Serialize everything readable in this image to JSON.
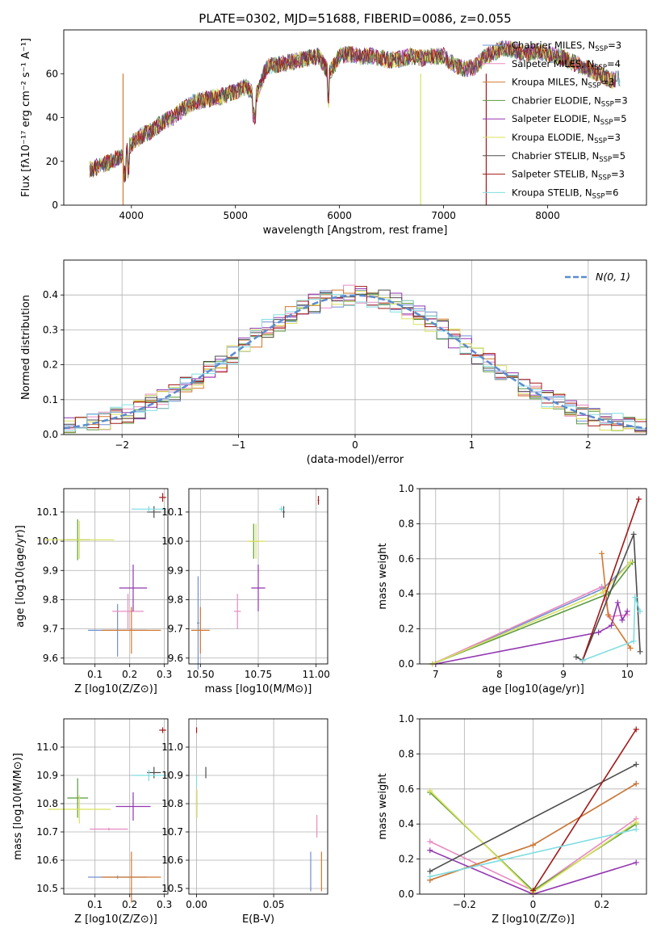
{
  "colors": {
    "Chabrier MILES": "#6f8fd1",
    "Salpeter MILES": "#e88bc0",
    "Kroupa MILES": "#d2782f",
    "Chabrier ELODIE": "#5b9a3e",
    "Salpeter ELODIE": "#9236b0",
    "Kroupa ELODIE": "#d9e25a",
    "Chabrier STELIB": "#4d4d4d",
    "Salpeter STELIB": "#a31818",
    "Kroupa STELIB": "#7fdde0"
  },
  "chart_data": [
    {
      "id": "spectrum",
      "type": "line",
      "title": "PLATE=0302, MJD=51688, FIBERID=0086, z=0.055",
      "xlabel": "wavelength [Angstrom, rest frame]",
      "ylabel": "Flux [fλ10⁻¹⁷ erg cm⁻² s⁻¹ A⁻¹]",
      "xlim": [
        3350,
        8950
      ],
      "ylim": [
        0,
        80
      ],
      "xticks": [
        4000,
        5000,
        6000,
        7000,
        8000
      ],
      "yticks": [
        0,
        20,
        40,
        60
      ],
      "grid": false,
      "legend": [
        "Chabrier MILES, N_SSP=3",
        "Salpeter MILES, N_SSP=4",
        "Kroupa MILES, N_SSP=3",
        "Chabrier ELODIE, N_SSP=3",
        "Salpeter ELODIE, N_SSP=5",
        "Kroupa ELODIE, N_SSP=3",
        "Chabrier STELIB, N_SSP=5",
        "Salpeter STELIB, N_SSP=3",
        "Kroupa STELIB, N_SSP=6"
      ],
      "legend_placement": "right",
      "series_shape": [
        [
          3600,
          16
        ],
        [
          3700,
          18
        ],
        [
          3800,
          20
        ],
        [
          3900,
          22
        ],
        [
          4000,
          28
        ],
        [
          4100,
          32
        ],
        [
          4200,
          34
        ],
        [
          4300,
          38
        ],
        [
          4400,
          40
        ],
        [
          4500,
          44
        ],
        [
          4600,
          47
        ],
        [
          4700,
          48
        ],
        [
          4800,
          49
        ],
        [
          4900,
          50
        ],
        [
          5000,
          52
        ],
        [
          5100,
          54
        ],
        [
          5200,
          50
        ],
        [
          5300,
          63
        ],
        [
          5400,
          64
        ],
        [
          5500,
          65
        ],
        [
          5600,
          66
        ],
        [
          5700,
          67
        ],
        [
          5800,
          68
        ],
        [
          5900,
          60
        ],
        [
          6000,
          68
        ],
        [
          6100,
          69
        ],
        [
          6200,
          68
        ],
        [
          6300,
          68
        ],
        [
          6400,
          67
        ],
        [
          6500,
          66
        ],
        [
          6600,
          67
        ],
        [
          6700,
          68
        ],
        [
          6800,
          67
        ],
        [
          6900,
          68
        ],
        [
          7000,
          68
        ],
        [
          7100,
          64
        ],
        [
          7200,
          62
        ],
        [
          7300,
          63
        ],
        [
          7400,
          68
        ],
        [
          7500,
          70
        ],
        [
          7600,
          72
        ],
        [
          7700,
          70
        ],
        [
          7800,
          69
        ],
        [
          7900,
          70
        ],
        [
          8000,
          69
        ],
        [
          8100,
          68
        ],
        [
          8200,
          66
        ],
        [
          8300,
          64
        ],
        [
          8400,
          62
        ],
        [
          8500,
          60
        ],
        [
          8600,
          57
        ],
        [
          8700,
          58
        ]
      ],
      "drop_lines": [
        {
          "x": 3920,
          "series": "Kroupa MILES"
        },
        {
          "x": 6780,
          "series": "Kroupa ELODIE"
        },
        {
          "x": 7410,
          "series": "Salpeter STELIB"
        }
      ]
    },
    {
      "id": "residuals",
      "type": "line",
      "xlabel": "(data-model)/error",
      "ylabel": "Normed distribution",
      "xlim": [
        -2.5,
        2.5
      ],
      "ylim": [
        0,
        0.5
      ],
      "xticks": [
        -2,
        -1,
        0,
        1,
        2
      ],
      "yticks": [
        0.0,
        0.1,
        0.2,
        0.3,
        0.4
      ],
      "grid": true,
      "legend": [
        "N(0, 1)"
      ],
      "legend_placement": "top-right"
    },
    {
      "id": "age_vs_Z",
      "type": "scatter",
      "xlabel": "Z [log10(Z/Z⊙)]",
      "ylabel": "age  [log10(age/yr)]",
      "xlim": [
        0.01,
        0.31
      ],
      "ylim": [
        9.58,
        10.18
      ],
      "xticks": [
        0.1,
        0.2,
        0.3
      ],
      "yticks": [
        9.6,
        9.7,
        9.8,
        9.9,
        10.0,
        10.1
      ],
      "grid": true,
      "points": [
        {
          "series": "Chabrier MILES",
          "x": 0.165,
          "y": 9.695,
          "xerr": 0.085,
          "yerr": 0.09
        },
        {
          "series": "Salpeter MILES",
          "x": 0.195,
          "y": 9.76,
          "xerr": 0.045,
          "yerr": 0.06
        },
        {
          "series": "Kroupa MILES",
          "x": 0.205,
          "y": 9.695,
          "xerr": 0.085,
          "yerr": 0.08
        },
        {
          "series": "Chabrier ELODIE",
          "x": 0.05,
          "y": 10.005,
          "xerr": 0.035,
          "yerr": 0.07
        },
        {
          "series": "Salpeter ELODIE",
          "x": 0.21,
          "y": 9.84,
          "xerr": 0.04,
          "yerr": 0.08
        },
        {
          "series": "Kroupa ELODIE",
          "x": 0.055,
          "y": 10.005,
          "xerr": 0.1,
          "yerr": 0.065
        },
        {
          "series": "Chabrier STELIB",
          "x": 0.27,
          "y": 10.1,
          "xerr": 0.02,
          "yerr": 0.02
        },
        {
          "series": "Salpeter STELIB",
          "x": 0.295,
          "y": 10.15,
          "xerr": 0.01,
          "yerr": 0.015
        },
        {
          "series": "Kroupa STELIB",
          "x": 0.255,
          "y": 10.11,
          "xerr": 0.05,
          "yerr": 0.01
        }
      ]
    },
    {
      "id": "age_vs_mass",
      "type": "scatter",
      "xlabel": "mass [log10(M/M⊙)]",
      "ylim": [
        9.58,
        10.18
      ],
      "xlim": [
        10.5,
        11.1
      ],
      "xticks": [
        10.55,
        10.8,
        11.05
      ],
      "xtick_labels": [
        "10.50",
        "10.75",
        "11.00"
      ],
      "yticks": [
        9.6,
        9.7,
        9.8,
        9.9,
        10.0,
        10.1
      ],
      "grid": true,
      "points": [
        {
          "series": "Chabrier MILES",
          "x": 10.54,
          "y": 9.72,
          "xerr": 0.005,
          "yerr": 0.16
        },
        {
          "series": "Salpeter MILES",
          "x": 10.71,
          "y": 9.76,
          "xerr": 0.015,
          "yerr": 0.06
        },
        {
          "series": "Kroupa MILES",
          "x": 10.55,
          "y": 9.695,
          "xerr": 0.04,
          "yerr": 0.08
        },
        {
          "series": "Chabrier ELODIE",
          "x": 10.78,
          "y": 10.0,
          "xerr": 0.02,
          "yerr": 0.06
        },
        {
          "series": "Salpeter ELODIE",
          "x": 10.8,
          "y": 9.84,
          "xerr": 0.03,
          "yerr": 0.08
        },
        {
          "series": "Kroupa ELODIE",
          "x": 10.79,
          "y": 10.0,
          "xerr": 0.04,
          "yerr": 0.06
        },
        {
          "series": "Chabrier STELIB",
          "x": 10.91,
          "y": 10.1,
          "xerr": 0.005,
          "yerr": 0.02
        },
        {
          "series": "Salpeter STELIB",
          "x": 11.06,
          "y": 10.14,
          "xerr": 0.003,
          "yerr": 0.015
        },
        {
          "series": "Kroupa STELIB",
          "x": 10.9,
          "y": 10.11,
          "xerr": 0.01,
          "yerr": 0.01
        }
      ]
    },
    {
      "id": "weight_vs_age",
      "type": "line",
      "xlabel": "age  [log10(age/yr)]",
      "ylabel": "mass weight",
      "xlim": [
        6.75,
        10.3
      ],
      "ylim": [
        0,
        1.0
      ],
      "xticks": [
        7,
        8,
        9,
        10
      ],
      "yticks": [
        0.0,
        0.2,
        0.4,
        0.6,
        0.8,
        1.0
      ],
      "grid": true,
      "series": [
        {
          "name": "Chabrier MILES",
          "points": [
            [
              6.95,
              0.0
            ],
            [
              9.62,
              0.43
            ],
            [
              10.05,
              0.58
            ]
          ]
        },
        {
          "name": "Salpeter MILES",
          "points": [
            [
              6.95,
              0.0
            ],
            [
              9.6,
              0.44
            ],
            [
              9.72,
              0.27
            ],
            [
              10.0,
              0.28
            ]
          ]
        },
        {
          "name": "Kroupa MILES",
          "points": [
            [
              9.6,
              0.63
            ],
            [
              9.7,
              0.28
            ],
            [
              10.05,
              0.09
            ]
          ]
        },
        {
          "name": "Chabrier ELODIE",
          "points": [
            [
              6.95,
              0.0
            ],
            [
              9.7,
              0.4
            ],
            [
              10.08,
              0.58
            ]
          ]
        },
        {
          "name": "Salpeter ELODIE",
          "points": [
            [
              7.0,
              0.0
            ],
            [
              9.55,
              0.18
            ],
            [
              9.75,
              0.22
            ],
            [
              9.85,
              0.35
            ],
            [
              9.92,
              0.25
            ],
            [
              10.0,
              0.3
            ]
          ]
        },
        {
          "name": "Kroupa ELODIE",
          "points": [
            [
              6.95,
              0.0
            ],
            [
              9.62,
              0.41
            ],
            [
              10.05,
              0.58
            ]
          ]
        },
        {
          "name": "Chabrier STELIB",
          "points": [
            [
              9.2,
              0.04
            ],
            [
              9.3,
              0.02
            ],
            [
              10.1,
              0.74
            ],
            [
              10.2,
              0.07
            ]
          ]
        },
        {
          "name": "Salpeter STELIB",
          "points": [
            [
              9.3,
              0.02
            ],
            [
              10.18,
              0.94
            ]
          ]
        },
        {
          "name": "Kroupa STELIB",
          "points": [
            [
              9.3,
              0.02
            ],
            [
              10.1,
              0.13
            ],
            [
              10.12,
              0.38
            ],
            [
              10.2,
              0.3
            ]
          ]
        }
      ]
    },
    {
      "id": "mass_vs_Z",
      "type": "scatter",
      "xlabel": "Z [log10(Z/Z⊙)]",
      "ylabel": "mass [log10(M/M⊙)]",
      "xlim": [
        0.01,
        0.31
      ],
      "ylim": [
        10.48,
        11.1
      ],
      "xticks": [
        0.1,
        0.2,
        0.3
      ],
      "yticks": [
        10.5,
        10.6,
        10.7,
        10.8,
        10.9,
        11.0
      ],
      "grid": true,
      "points": [
        {
          "series": "Chabrier MILES",
          "x": 0.165,
          "y": 10.54,
          "xerr": 0.085,
          "yerr": 0.005
        },
        {
          "series": "Salpeter MILES",
          "x": 0.14,
          "y": 10.71,
          "xerr": 0.055,
          "yerr": 0.005
        },
        {
          "series": "Kroupa MILES",
          "x": 0.205,
          "y": 10.54,
          "xerr": 0.085,
          "yerr": 0.09
        },
        {
          "series": "Chabrier ELODIE",
          "x": 0.05,
          "y": 10.82,
          "xerr": 0.03,
          "yerr": 0.07
        },
        {
          "series": "Salpeter ELODIE",
          "x": 0.21,
          "y": 10.79,
          "xerr": 0.05,
          "yerr": 0.05
        },
        {
          "series": "Kroupa ELODIE",
          "x": 0.055,
          "y": 10.78,
          "xerr": 0.09,
          "yerr": 0.05
        },
        {
          "series": "Chabrier STELIB",
          "x": 0.27,
          "y": 10.91,
          "xerr": 0.02,
          "yerr": 0.02
        },
        {
          "series": "Salpeter STELIB",
          "x": 0.295,
          "y": 11.06,
          "xerr": 0.01,
          "yerr": 0.01
        },
        {
          "series": "Kroupa STELIB",
          "x": 0.255,
          "y": 10.9,
          "xerr": 0.05,
          "yerr": 0.02
        }
      ]
    },
    {
      "id": "mass_vs_ebv",
      "type": "scatter",
      "xlabel": "E(B-V)",
      "xlim": [
        -0.005,
        0.085
      ],
      "ylim": [
        10.48,
        11.1
      ],
      "xticks": [
        0.0,
        0.05
      ],
      "xtick_labels": [
        "0.00",
        "0.05"
      ],
      "yticks": [
        10.5,
        10.6,
        10.7,
        10.8,
        10.9,
        11.0
      ],
      "grid": true,
      "points": [
        {
          "series": "Chabrier MILES",
          "x": 0.074,
          "y": 10.56,
          "xerr": 0,
          "yerr": 0.07
        },
        {
          "series": "Salpeter MILES",
          "x": 0.078,
          "y": 10.72,
          "xerr": 0,
          "yerr": 0.04
        },
        {
          "series": "Kroupa MILES",
          "x": 0.081,
          "y": 10.56,
          "xerr": 0,
          "yerr": 0.07
        },
        {
          "series": "Chabrier ELODIE",
          "x": 0.0,
          "y": 10.8,
          "xerr": 0,
          "yerr": 0.05
        },
        {
          "series": "Salpeter ELODIE",
          "x": 0.0,
          "y": 10.8,
          "xerr": 0,
          "yerr": 0.05
        },
        {
          "series": "Kroupa ELODIE",
          "x": 0.0,
          "y": 10.8,
          "xerr": 0,
          "yerr": 0.05
        },
        {
          "series": "Chabrier STELIB",
          "x": 0.006,
          "y": 10.91,
          "xerr": 0,
          "yerr": 0.02
        },
        {
          "series": "Salpeter STELIB",
          "x": 0.0,
          "y": 11.06,
          "xerr": 0,
          "yerr": 0.01
        },
        {
          "series": "Kroupa STELIB",
          "x": 0.0,
          "y": 10.88,
          "xerr": 0,
          "yerr": 0.02
        }
      ]
    },
    {
      "id": "weight_vs_Z",
      "type": "line",
      "xlabel": "Z [log10(Z/Z⊙)]",
      "ylabel": "mass weight",
      "xlim": [
        -0.33,
        0.33
      ],
      "ylim": [
        0,
        1.0
      ],
      "xticks": [
        -0.2,
        0.0,
        0.2
      ],
      "yticks": [
        0.0,
        0.2,
        0.4,
        0.6,
        0.8,
        1.0
      ],
      "grid": true,
      "series": [
        {
          "name": "Chabrier MILES",
          "points": [
            [
              -0.3,
              0.08
            ],
            [
              0.0,
              0.28
            ],
            [
              0.3,
              0.63
            ]
          ]
        },
        {
          "name": "Salpeter MILES",
          "points": [
            [
              -0.3,
              0.3
            ],
            [
              0.0,
              0.02
            ],
            [
              0.3,
              0.43
            ]
          ]
        },
        {
          "name": "Kroupa MILES",
          "points": [
            [
              -0.3,
              0.08
            ],
            [
              0.0,
              0.28
            ],
            [
              0.3,
              0.63
            ]
          ]
        },
        {
          "name": "Chabrier ELODIE",
          "points": [
            [
              -0.3,
              0.58
            ],
            [
              0.0,
              0.02
            ],
            [
              0.3,
              0.4
            ]
          ]
        },
        {
          "name": "Salpeter ELODIE",
          "points": [
            [
              -0.3,
              0.25
            ],
            [
              0.0,
              0.0
            ],
            [
              0.3,
              0.18
            ]
          ]
        },
        {
          "name": "Kroupa ELODIE",
          "points": [
            [
              -0.3,
              0.59
            ],
            [
              0.0,
              0.01
            ],
            [
              0.3,
              0.41
            ]
          ]
        },
        {
          "name": "Chabrier STELIB",
          "points": [
            [
              -0.3,
              0.13
            ],
            [
              0.3,
              0.74
            ]
          ]
        },
        {
          "name": "Salpeter STELIB",
          "points": [
            [
              0.0,
              0.02
            ],
            [
              0.3,
              0.94
            ]
          ]
        },
        {
          "name": "Kroupa STELIB",
          "points": [
            [
              -0.3,
              0.1
            ],
            [
              0.3,
              0.37
            ]
          ]
        }
      ]
    }
  ]
}
